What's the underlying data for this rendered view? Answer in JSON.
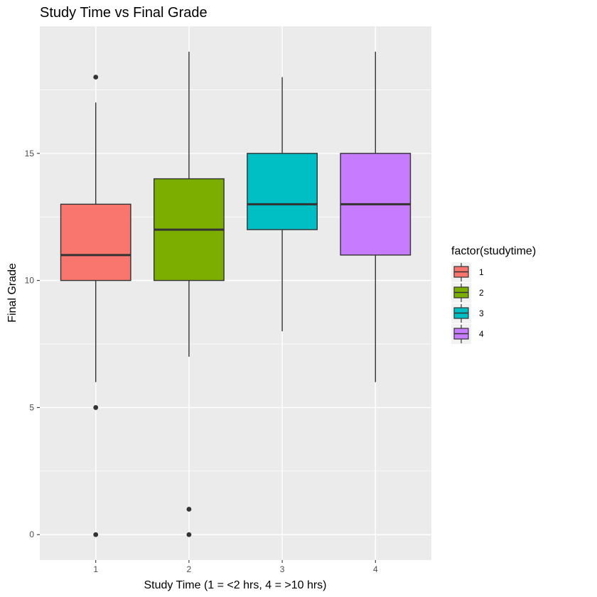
{
  "chart_data": {
    "type": "boxplot",
    "title": "Study Time vs Final Grade",
    "xlabel": "Study Time (1 = <2 hrs, 4 = >10 hrs)",
    "ylabel": "Final Grade",
    "ylim": [
      -1,
      20
    ],
    "y_ticks": [
      0,
      5,
      10,
      15
    ],
    "grid": true,
    "legend": {
      "title": "factor(studytime)",
      "placement": "right",
      "entries": [
        "1",
        "2",
        "3",
        "4"
      ]
    },
    "categories": [
      "1",
      "2",
      "3",
      "4"
    ],
    "boxes": [
      {
        "name": "1",
        "color": "#F8766D",
        "whisker_low": 6,
        "q1": 10,
        "median": 11,
        "q3": 13,
        "whisker_high": 17,
        "outliers": [
          18,
          5,
          0
        ]
      },
      {
        "name": "2",
        "color": "#7CAE00",
        "whisker_low": 7,
        "q1": 10,
        "median": 12,
        "q3": 14,
        "whisker_high": 19,
        "outliers": [
          1,
          0
        ]
      },
      {
        "name": "3",
        "color": "#00BFC4",
        "whisker_low": 8,
        "q1": 12,
        "median": 13,
        "q3": 15,
        "whisker_high": 18,
        "outliers": []
      },
      {
        "name": "4",
        "color": "#C77CFF",
        "whisker_low": 6,
        "q1": 11,
        "median": 13,
        "q3": 15,
        "whisker_high": 19,
        "outliers": []
      }
    ]
  }
}
